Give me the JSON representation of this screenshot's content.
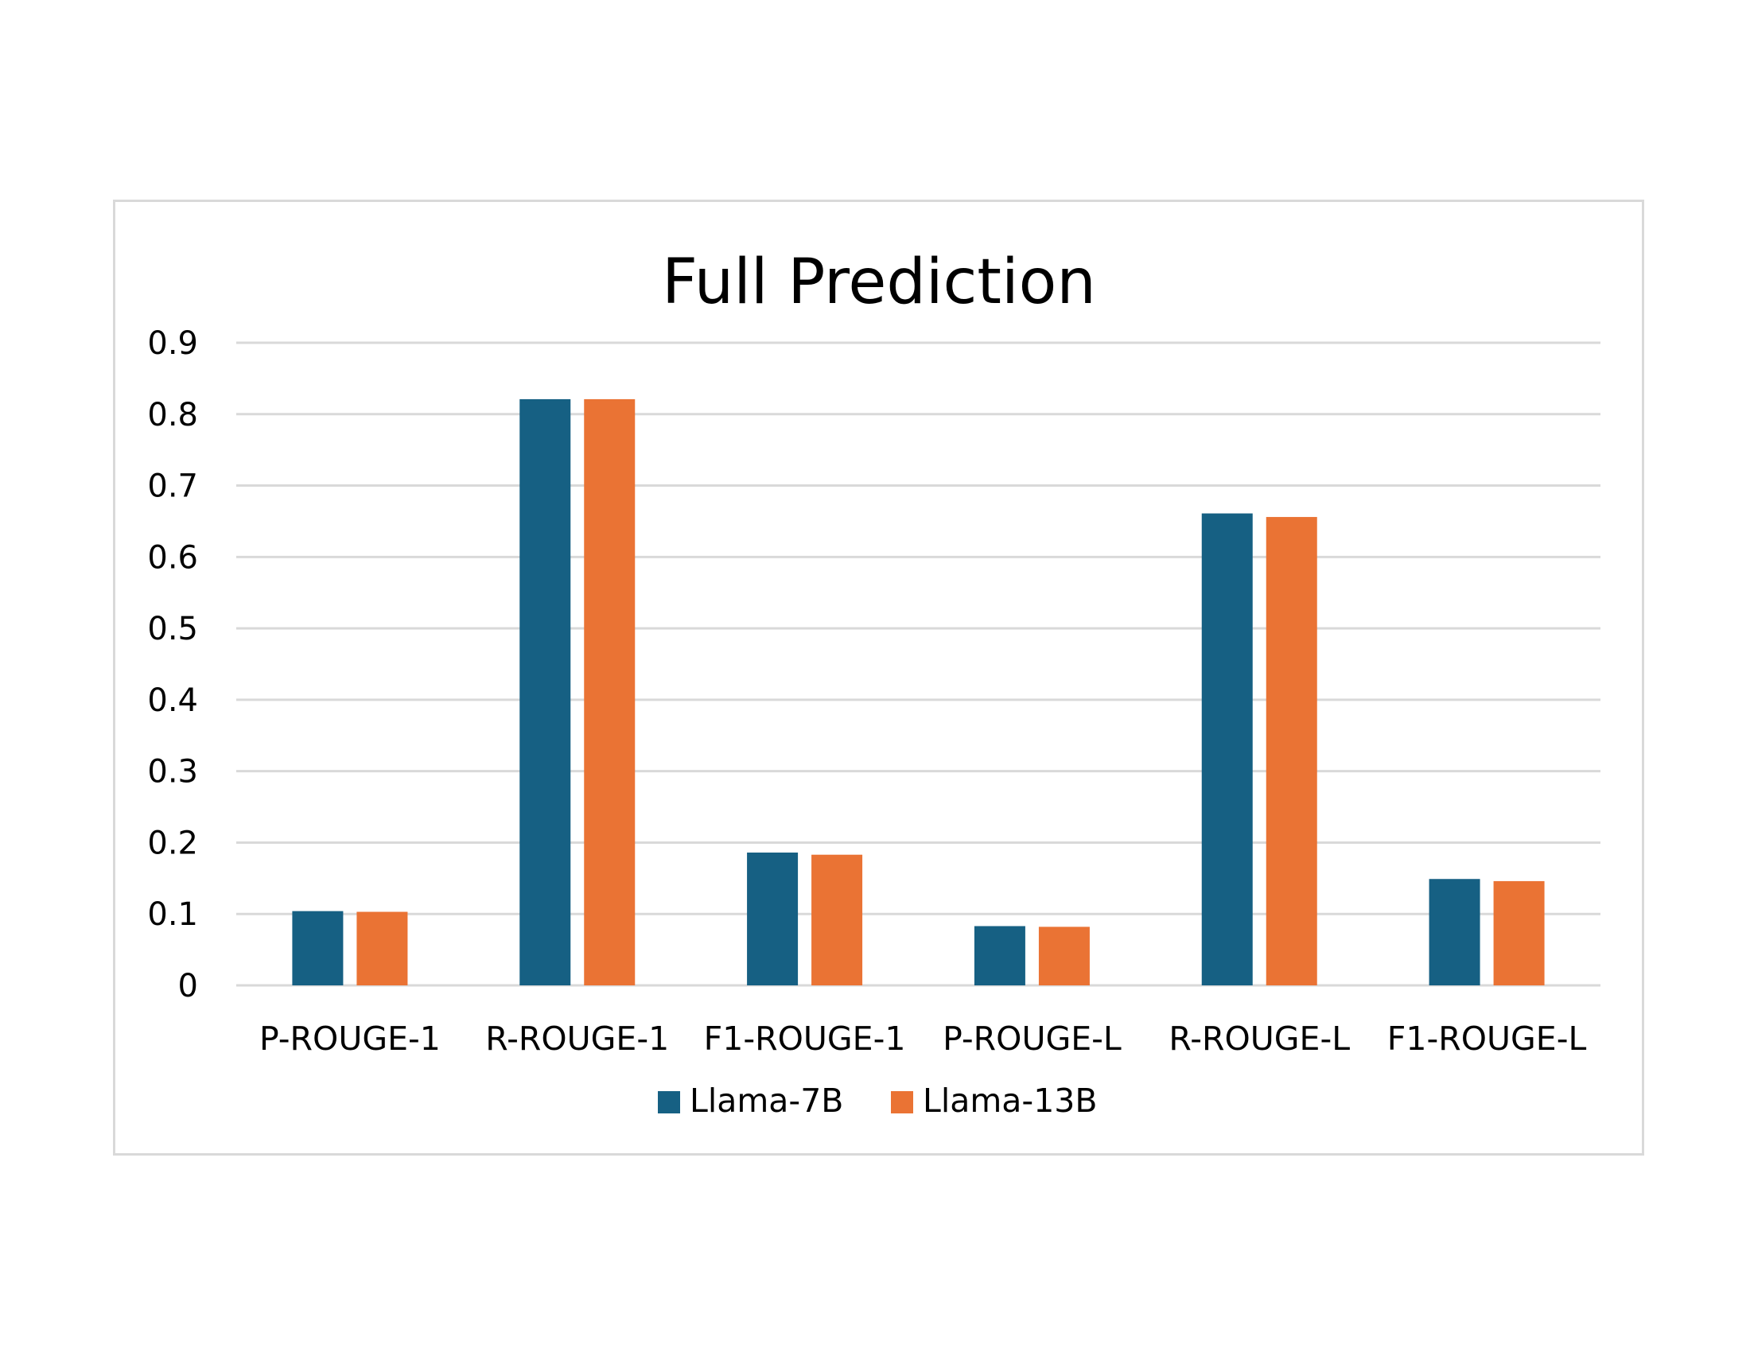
{
  "chart_data": {
    "type": "bar",
    "title": "Full Prediction",
    "xlabel": "",
    "ylabel": "",
    "categories": [
      "P-ROUGE-1",
      "R-ROUGE-1",
      "F1-ROUGE-1",
      "P-ROUGE-L",
      "R-ROUGE-L",
      "F1-ROUGE-L"
    ],
    "series": [
      {
        "name": "Llama-7B",
        "color": "#166083",
        "values": [
          0.104,
          0.821,
          0.186,
          0.083,
          0.661,
          0.149
        ]
      },
      {
        "name": "Llama-13B",
        "color": "#EA7334",
        "values": [
          0.103,
          0.821,
          0.183,
          0.082,
          0.656,
          0.146
        ]
      }
    ],
    "ylim": [
      0,
      0.9
    ],
    "yticks": [
      "0",
      "0.1",
      "0.2",
      "0.3",
      "0.4",
      "0.5",
      "0.6",
      "0.7",
      "0.8",
      "0.9"
    ],
    "grid": true,
    "gridline_color": "#d9d9d9",
    "legend_position": "bottom"
  }
}
